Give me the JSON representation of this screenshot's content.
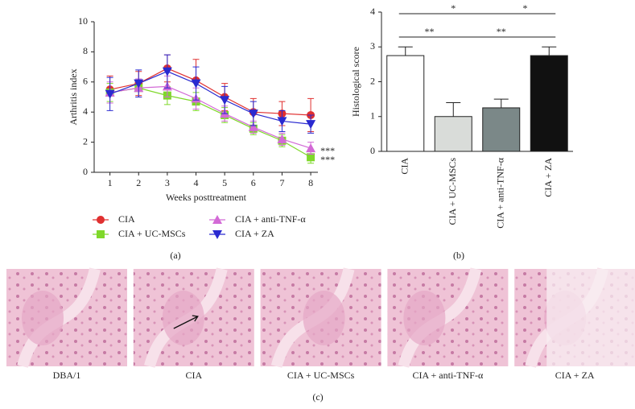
{
  "chart_data": [
    {
      "type": "line",
      "panel_label": "(a)",
      "x_label": "Weeks posttreatment",
      "y_label": "Arthritis index",
      "x": [
        1,
        2,
        3,
        4,
        5,
        6,
        7,
        8
      ],
      "xlim": [
        0.45,
        8.25
      ],
      "xticks": [
        1,
        2,
        3,
        4,
        5,
        6,
        7,
        8
      ],
      "ylim": [
        0,
        10
      ],
      "yticks": [
        0,
        2,
        4,
        6,
        8,
        10
      ],
      "series": [
        {
          "name": "CIA",
          "color": "#e03030",
          "marker": "circle",
          "values": [
            5.5,
            5.9,
            6.9,
            6.1,
            5.0,
            4.0,
            3.9,
            3.8
          ],
          "errors": [
            0.9,
            0.8,
            0.9,
            1.4,
            0.9,
            0.9,
            0.8,
            1.1
          ]
        },
        {
          "name": "CIA + UC-MSCs",
          "color": "#7fd82a",
          "marker": "square",
          "values": [
            5.3,
            5.6,
            5.1,
            4.7,
            3.8,
            2.9,
            2.1,
            1.0
          ],
          "errors": [
            0.6,
            0.6,
            0.6,
            0.6,
            0.5,
            0.4,
            0.4,
            0.4
          ],
          "annotation": "***"
        },
        {
          "name": "CIA + anti-TNF-α",
          "color": "#d36ad6",
          "marker": "triangle-up",
          "values": [
            5.3,
            5.6,
            5.7,
            4.9,
            3.9,
            3.0,
            2.2,
            1.6
          ],
          "errors": [
            0.7,
            0.6,
            0.7,
            0.7,
            0.5,
            0.4,
            0.4,
            0.4
          ],
          "annotation": "***"
        },
        {
          "name": "CIA + ZA",
          "color": "#2a2ad0",
          "marker": "triangle-down",
          "values": [
            5.2,
            5.9,
            6.7,
            5.9,
            4.8,
            3.9,
            3.4,
            3.2
          ],
          "errors": [
            1.1,
            0.9,
            1.1,
            1.1,
            0.9,
            0.8,
            0.7,
            0.6
          ]
        }
      ]
    },
    {
      "type": "bar",
      "panel_label": "(b)",
      "y_label": "Histological score",
      "categories": [
        "CIA",
        "CIA + UC-MSCs",
        "CIA + anti-TNF-α",
        "CIA + ZA"
      ],
      "values": [
        2.75,
        1.0,
        1.25,
        2.75
      ],
      "errors": [
        0.25,
        0.4,
        0.25,
        0.25
      ],
      "colors": [
        "#ffffff",
        "#d9dcd9",
        "#7b8888",
        "#111111"
      ],
      "ylim": [
        0,
        4
      ],
      "yticks": [
        0,
        1,
        2,
        3,
        4
      ],
      "significance": [
        {
          "from": 0,
          "to": 2,
          "label": "*"
        },
        {
          "from": 2,
          "to": 3,
          "label": "*"
        },
        {
          "from": 0,
          "to": 1,
          "label": "**"
        },
        {
          "from": 1,
          "to": 3,
          "label": "**"
        }
      ]
    }
  ],
  "histology": {
    "panel_label": "(c)",
    "captions": [
      "DBA/1",
      "CIA",
      "CIA + UC-MSCs",
      "CIA + anti-TNF-α",
      "CIA + ZA"
    ]
  }
}
